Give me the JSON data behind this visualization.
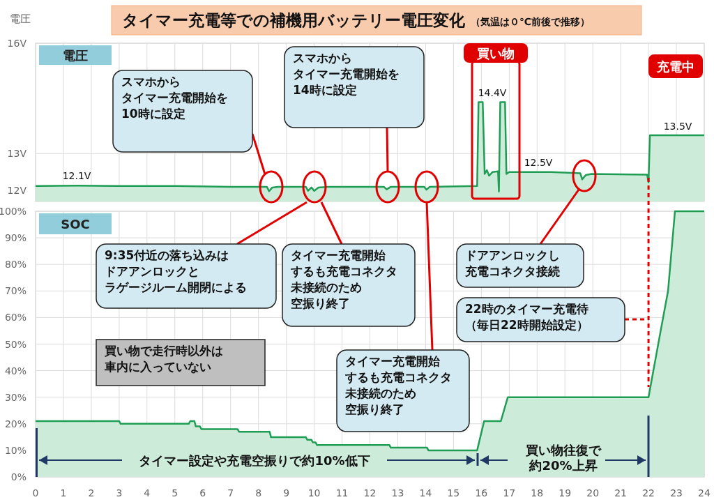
{
  "chart_data": [
    {
      "type": "area",
      "title": "タイマー充電等での補機用バッテリー電圧変化",
      "subtitle": "（気温は０℃前後で推移）",
      "ylabel": "電圧",
      "x": [
        0,
        1.5,
        3,
        5,
        7,
        8.3,
        8.38,
        8.5,
        8.7,
        9.7,
        9.78,
        9.9,
        10.0,
        10.15,
        10.5,
        12.5,
        12.6,
        12.75,
        13.95,
        14.03,
        14.15,
        15.85,
        15.9,
        16.05,
        16.12,
        16.2,
        16.28,
        16.4,
        16.6,
        16.63,
        16.68,
        16.85,
        16.9,
        17.0,
        18.5,
        19.55,
        19.62,
        19.75,
        19.95,
        21.95,
        22.0,
        22.05,
        24
      ],
      "series": [
        {
          "color": "#1f9d55",
          "values": [
            12.12,
            12.13,
            12.12,
            12.12,
            12.1,
            12.1,
            11.98,
            12.08,
            12.1,
            12.1,
            11.99,
            12.08,
            11.99,
            12.08,
            12.1,
            12.1,
            12.03,
            12.1,
            12.1,
            12.02,
            12.1,
            12.12,
            14.4,
            14.4,
            12.45,
            12.55,
            12.4,
            12.5,
            12.52,
            11.97,
            14.4,
            14.4,
            12.45,
            12.5,
            12.5,
            12.47,
            12.3,
            12.42,
            12.45,
            12.43,
            12.22,
            13.5,
            13.5
          ]
        }
      ],
      "xlim": [
        0,
        24
      ],
      "xticks": [
        0,
        1,
        2,
        3,
        4,
        5,
        6,
        7,
        8,
        9,
        10,
        11,
        12,
        13,
        14,
        15,
        16,
        17,
        18,
        19,
        20,
        21,
        22,
        23,
        24
      ],
      "ylim": [
        11.7,
        16
      ],
      "yticks": [
        {
          "value": 12,
          "label": "12V"
        },
        {
          "value": 13,
          "label": "13V"
        },
        {
          "value": 16,
          "label": "16V"
        }
      ],
      "grid": true,
      "tick_labels": "y",
      "annotations": [
        "12.1V",
        "14.4V",
        "12.5V",
        "13.5V",
        "電圧",
        "スマホからタイマー充電開始を10時に設定",
        "スマホからタイマー充電開始を14時に設定",
        "充電中",
        "買い物"
      ]
    },
    {
      "type": "area",
      "title": "SOC",
      "x": [
        0,
        3,
        3.05,
        5.5,
        5.55,
        5.7,
        5.75,
        5.9,
        5.95,
        7.25,
        7.3,
        8.4,
        8.45,
        9.7,
        9.75,
        9.9,
        9.95,
        10.05,
        10.1,
        12.7,
        12.75,
        14.05,
        14.1,
        15.85,
        16.1,
        16.7,
        16.95,
        22.0,
        22.4,
        22.7,
        22.95,
        24
      ],
      "series": [
        {
          "color": "#1f9d55",
          "values": [
            21,
            21,
            20,
            20,
            21,
            21,
            19,
            19,
            18,
            18,
            17,
            17,
            15,
            15,
            14,
            14,
            13,
            13,
            12,
            12,
            11,
            11,
            10,
            10,
            21,
            21,
            30,
            30,
            53,
            70,
            100,
            100
          ]
        }
      ],
      "xlim": [
        0,
        24
      ],
      "xticks": [
        0,
        1,
        2,
        3,
        4,
        5,
        6,
        7,
        8,
        9,
        10,
        11,
        12,
        13,
        14,
        15,
        16,
        17,
        18,
        19,
        20,
        21,
        22,
        23,
        24
      ],
      "ylim": [
        0,
        100
      ],
      "yticks": [
        {
          "value": 0,
          "label": "0%"
        },
        {
          "value": 10,
          "label": "10%"
        },
        {
          "value": 20,
          "label": "20%"
        },
        {
          "value": 30,
          "label": "30%"
        },
        {
          "value": 40,
          "label": "40%"
        },
        {
          "value": 50,
          "label": "50%"
        },
        {
          "value": 60,
          "label": "60%"
        },
        {
          "value": 70,
          "label": "70%"
        },
        {
          "value": 80,
          "label": "80%"
        },
        {
          "value": 90,
          "label": "90%"
        },
        {
          "value": 100,
          "label": "100%"
        }
      ],
      "grid": true,
      "ref_lines": [
        {
          "axis": "x",
          "value": 22,
          "color": "#e00000",
          "line_style": "dashed"
        }
      ],
      "annotations": [
        "9:35付近の落ち込みはドアアンロックとラゲージルーム開閉による",
        "タイマー充電開始するも充電コネクタ未接続のため空振り終了",
        "ドアアンロックし充電コネクタ接続",
        "22時のタイマー充電待（毎日22時開始設定）",
        "買い物で走行時以外は車内に入っていない",
        "タイマー充電開始するも充電コネクタ未接続のため空振り終了",
        "タイマー設定や充電空振りで約10%低下",
        "買い物往復で約20%上昇"
      ]
    }
  ]
}
